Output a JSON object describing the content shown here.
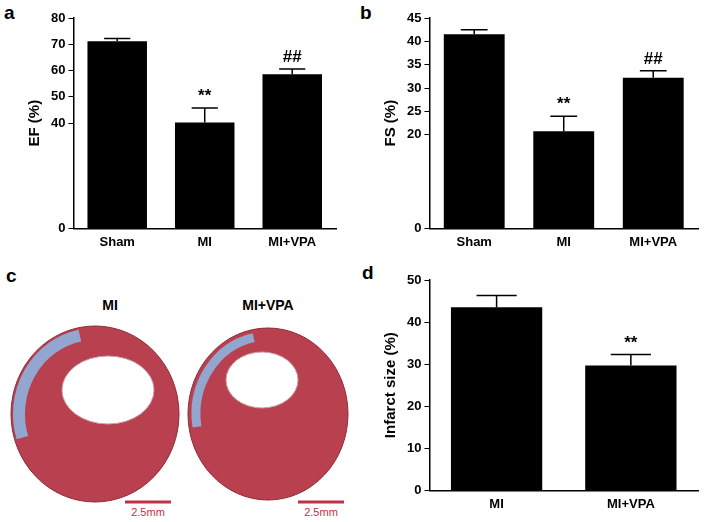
{
  "chart_data": [
    {
      "panel": "a",
      "type": "bar",
      "y_label": "EF (%)",
      "categories": [
        "Sham",
        "MI",
        "MI+VPA"
      ],
      "values": [
        71.2,
        40.3,
        58.6
      ],
      "errors": [
        1.0,
        5.5,
        2.0
      ],
      "significance": [
        null,
        "**",
        "##"
      ],
      "color": "#000000",
      "ylim": [
        0,
        80
      ],
      "yticks": [
        0,
        40,
        50,
        60,
        70,
        80
      ],
      "grid": false
    },
    {
      "panel": "b",
      "type": "bar",
      "y_label": "FS (%)",
      "categories": [
        "Sham",
        "MI",
        "MI+VPA"
      ],
      "values": [
        41.5,
        20.8,
        32.2
      ],
      "errors": [
        1.0,
        3.2,
        1.5
      ],
      "significance": [
        null,
        "**",
        "##"
      ],
      "color": "#000000",
      "ylim": [
        0,
        45
      ],
      "yticks": [
        0,
        20,
        25,
        30,
        35,
        40,
        45
      ],
      "grid": false
    },
    {
      "panel": "d",
      "type": "bar",
      "y_label": "Infarct size (%)",
      "categories": [
        "MI",
        "MI+VPA"
      ],
      "values": [
        43.5,
        29.7
      ],
      "errors": [
        2.8,
        2.6
      ],
      "significance": [
        null,
        "**"
      ],
      "color": "#000000",
      "ylim": [
        0,
        50
      ],
      "yticks": [
        0,
        10,
        20,
        30,
        40,
        50
      ],
      "grid": false
    }
  ],
  "image_panel": {
    "panel": "c",
    "labels": [
      "MI",
      "MI+VPA"
    ],
    "scale_bars": [
      "2.5mm",
      "2.5mm"
    ]
  }
}
